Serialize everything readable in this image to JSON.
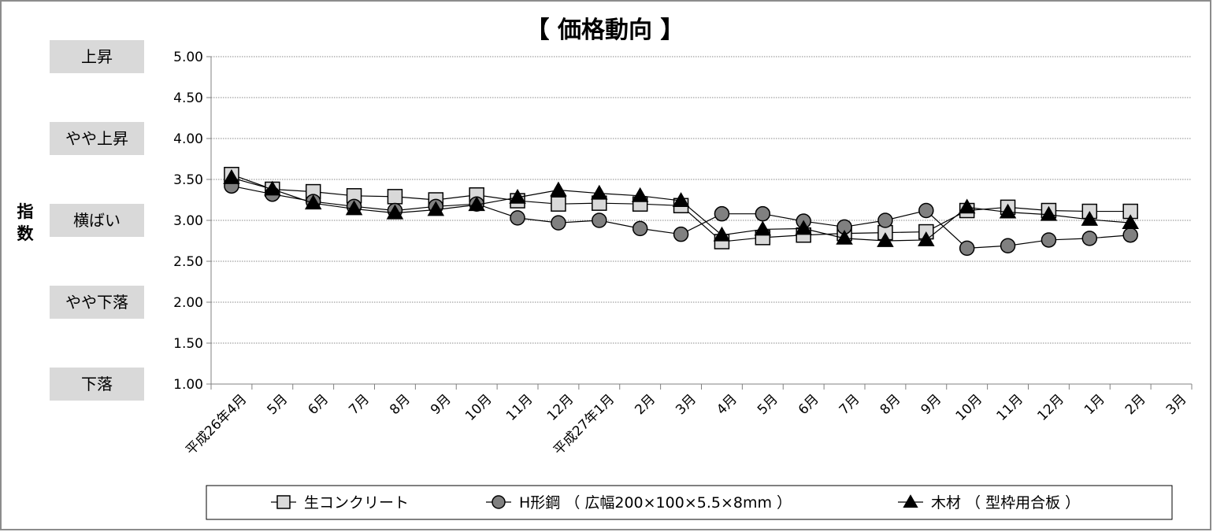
{
  "chart_data": {
    "type": "line",
    "title": "【 価格動向 】",
    "ylabel": "指数",
    "ylim": [
      1.0,
      5.0
    ],
    "yticks": [
      "1.00",
      "1.50",
      "2.00",
      "2.50",
      "3.00",
      "3.50",
      "4.00",
      "4.50",
      "5.00"
    ],
    "grid": "horizontal dotted",
    "legend_position": "bottom",
    "band_labels": [
      {
        "text": "上昇",
        "value": 5.0
      },
      {
        "text": "やや上昇",
        "value": 4.0
      },
      {
        "text": "横ばい",
        "value": 3.0
      },
      {
        "text": "やや下落",
        "value": 2.0
      },
      {
        "text": "下落",
        "value": 1.0
      }
    ],
    "categories": [
      "平成26年4月",
      "5月",
      "6月",
      "7月",
      "8月",
      "9月",
      "10月",
      "11月",
      "12月",
      "平成27年1月",
      "2月",
      "3月",
      "4月",
      "5月",
      "6月",
      "7月",
      "8月",
      "9月",
      "10月",
      "11月",
      "12月",
      "1月",
      "2月",
      "3月"
    ],
    "series": [
      {
        "name": "生コンクリート",
        "marker": "square",
        "color": "#d9d9d9",
        "values": [
          3.56,
          3.38,
          3.35,
          3.3,
          3.29,
          3.25,
          3.31,
          3.24,
          3.2,
          3.21,
          3.2,
          3.18,
          2.74,
          2.79,
          2.82,
          2.84,
          2.85,
          2.86,
          3.12,
          3.16,
          3.12,
          3.11,
          3.11,
          null
        ]
      },
      {
        "name": "H形鋼 （ 広幅200×100×5.5×8mm ）",
        "marker": "circle",
        "color": "#808080",
        "values": [
          3.42,
          3.32,
          3.23,
          3.17,
          3.12,
          3.17,
          3.2,
          3.03,
          2.97,
          3.0,
          2.9,
          2.83,
          3.08,
          3.08,
          2.99,
          2.92,
          3.0,
          3.12,
          2.66,
          2.69,
          2.76,
          2.78,
          2.82,
          null
        ]
      },
      {
        "name": "木材 （ 型枠用合板 ）",
        "marker": "triangle",
        "color": "#000000",
        "values": [
          3.52,
          3.38,
          3.21,
          3.14,
          3.09,
          3.13,
          3.19,
          3.28,
          3.37,
          3.33,
          3.3,
          3.24,
          2.82,
          2.89,
          2.9,
          2.78,
          2.75,
          2.76,
          3.16,
          3.1,
          3.07,
          3.01,
          2.97,
          null
        ]
      }
    ]
  }
}
